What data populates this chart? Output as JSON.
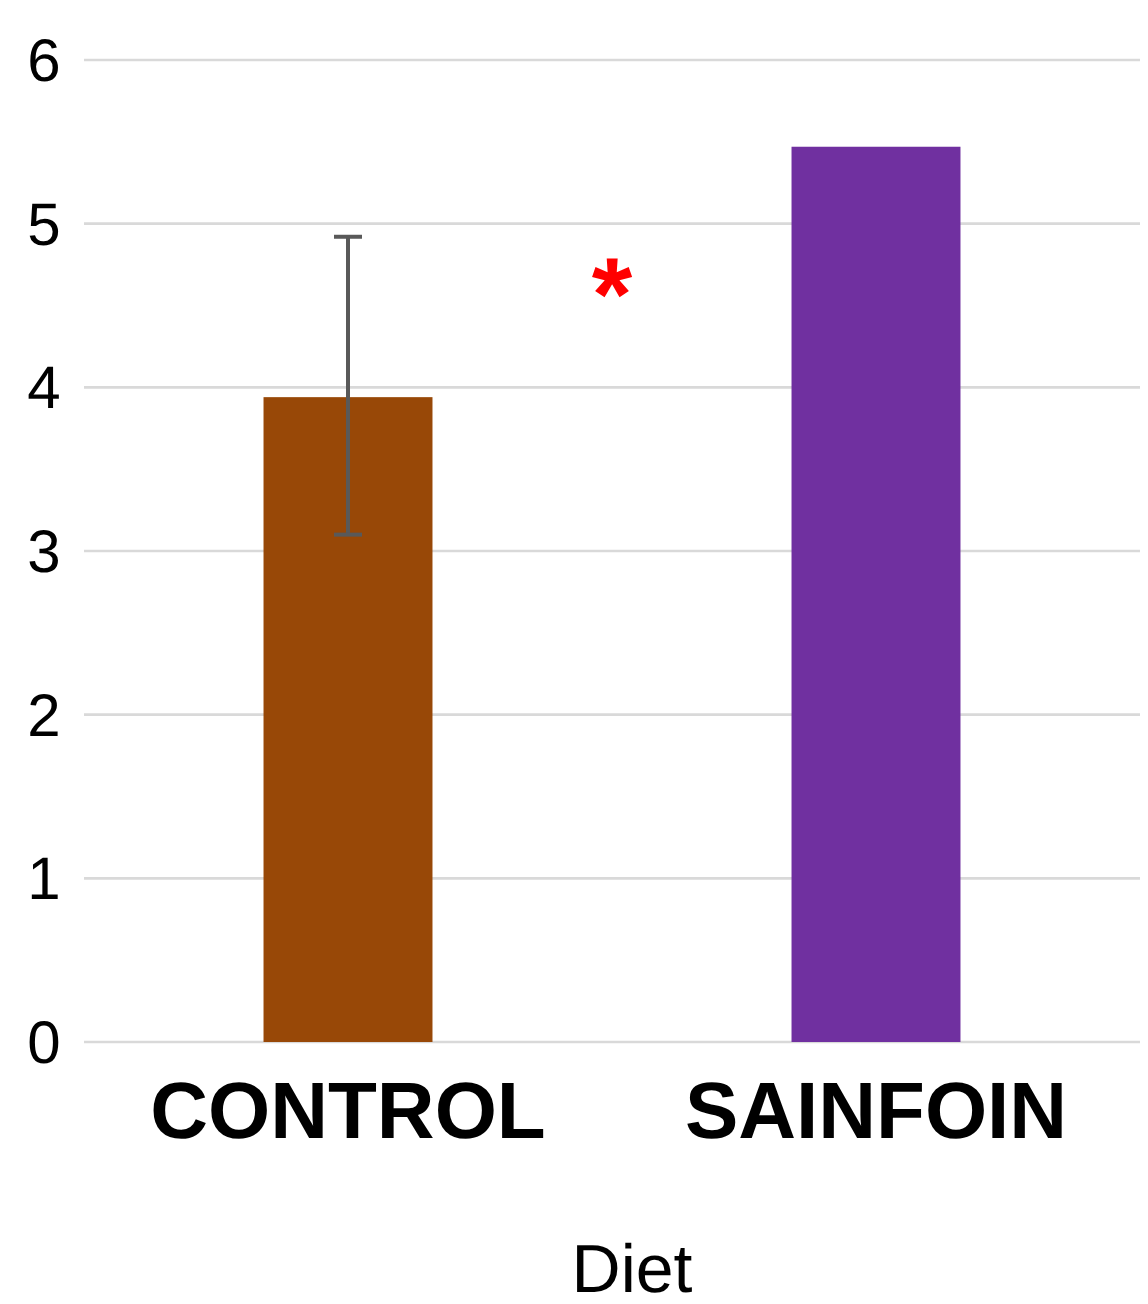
{
  "chart_data": {
    "type": "bar",
    "xlabel": "Diet",
    "categories": [
      "CONTROL",
      "SAINFOIN"
    ],
    "values": [
      3.94,
      5.47
    ],
    "colors": [
      "#984807",
      "#7030a0"
    ],
    "errors": [
      [
        3.1,
        4.92
      ],
      null
    ],
    "ylim": [
      0,
      6
    ],
    "yticks": [
      0,
      1,
      2,
      3,
      4,
      5,
      6
    ],
    "grid": "y",
    "annotations": [
      "*"
    ]
  }
}
